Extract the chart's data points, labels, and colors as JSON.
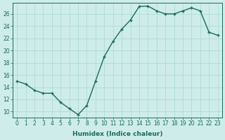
{
  "x": [
    0,
    1,
    2,
    3,
    4,
    5,
    6,
    7,
    8,
    9,
    10,
    11,
    12,
    13,
    14,
    15,
    16,
    17,
    18,
    19,
    20,
    21,
    22,
    23
  ],
  "y": [
    15,
    14.5,
    13.5,
    13,
    13,
    11.5,
    10.5,
    9.5,
    11,
    15,
    19,
    21.5,
    23.5,
    25,
    27.2,
    27.3,
    26.5,
    26,
    26,
    26.5,
    27,
    26.5,
    23,
    22.5
  ],
  "line_color": "#1a6b5a",
  "marker": "+",
  "marker_size": 3.5,
  "bg_color": "#ceecea",
  "grid_color": "#a8d8d4",
  "xlabel": "Humidex (Indice chaleur)",
  "ylabel": "",
  "xlim": [
    -0.5,
    23.5
  ],
  "ylim": [
    9,
    27.8
  ],
  "yticks": [
    10,
    12,
    14,
    16,
    18,
    20,
    22,
    24,
    26
  ],
  "xticks": [
    0,
    1,
    2,
    3,
    4,
    5,
    6,
    7,
    8,
    9,
    10,
    11,
    12,
    13,
    14,
    15,
    16,
    17,
    18,
    19,
    20,
    21,
    22,
    23
  ],
  "xlabel_fontsize": 6.5,
  "tick_fontsize": 5.5,
  "line_width": 1.0,
  "marker_edge_width": 1.0
}
